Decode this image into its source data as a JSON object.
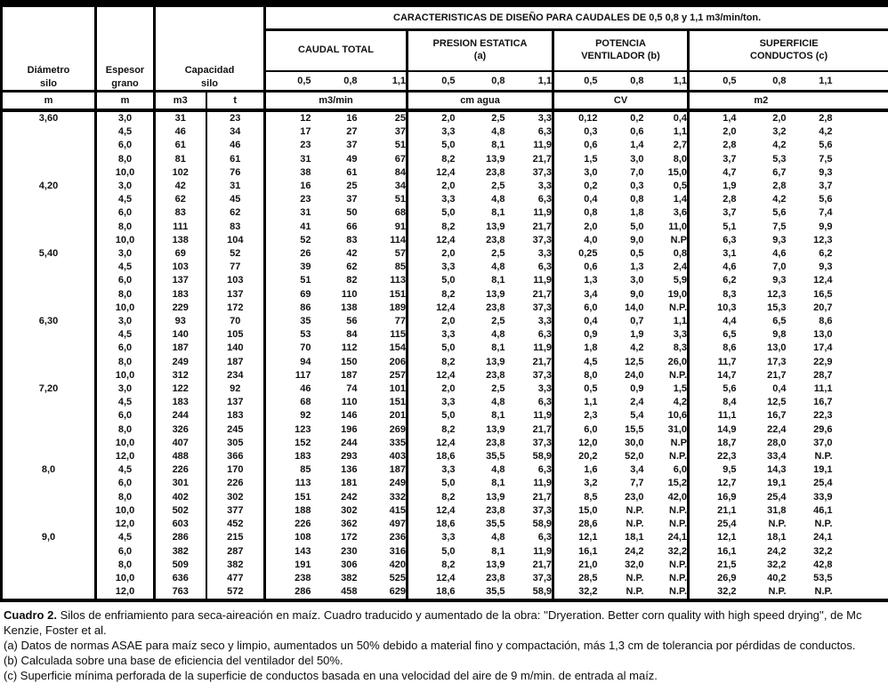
{
  "table": {
    "banner": "CARACTERISTICAS DE DISEÑO PARA CAUDALES DE 0,5 0,8 y 1,1 m3/min/ton.",
    "header": {
      "diametro_l1": "Diámetro",
      "diametro_l2": "silo",
      "diametro_unit": "m",
      "espesor_l1": "Espesor",
      "espesor_l2": "grano",
      "espesor_unit": "m",
      "capacidad_l1": "Capacidad",
      "capacidad_l2": "silo",
      "capacidad_unit_m3": "m3",
      "capacidad_unit_t": "t",
      "caudal_l1": "CAUDAL TOTAL",
      "caudal_unit": "m3/min",
      "presion_l1": "PRESION ESTATICA",
      "presion_l2": "(a)",
      "presion_unit": "cm agua",
      "potencia_l1": "POTENCIA",
      "potencia_l2": "VENTILADOR (b)",
      "potencia_unit": "CV",
      "superficie_l1": "SUPERFICIE",
      "superficie_l2": "CONDUCTOS (c)",
      "superficie_unit": "m2",
      "flow_levels": [
        "0,5",
        "0,8",
        "1,1"
      ]
    },
    "rows": [
      [
        "3,60",
        "3,0",
        "31",
        "23",
        "12",
        "16",
        "25",
        "2,0",
        "2,5",
        "3,3",
        "0,12",
        "0,2",
        "0,4",
        "1,4",
        "2,0",
        "2,8"
      ],
      [
        "",
        "4,5",
        "46",
        "34",
        "17",
        "27",
        "37",
        "3,3",
        "4,8",
        "6,3",
        "0,3",
        "0,6",
        "1,1",
        "2,0",
        "3,2",
        "4,2"
      ],
      [
        "",
        "6,0",
        "61",
        "46",
        "23",
        "37",
        "51",
        "5,0",
        "8,1",
        "11,9",
        "0,6",
        "1,4",
        "2,7",
        "2,8",
        "4,2",
        "5,6"
      ],
      [
        "",
        "8,0",
        "81",
        "61",
        "31",
        "49",
        "67",
        "8,2",
        "13,9",
        "21,7",
        "1,5",
        "3,0",
        "8,0",
        "3,7",
        "5,3",
        "7,5"
      ],
      [
        "",
        "10,0",
        "102",
        "76",
        "38",
        "61",
        "84",
        "12,4",
        "23,8",
        "37,3",
        "3,0",
        "7,0",
        "15,0",
        "4,7",
        "6,7",
        "9,3"
      ],
      [
        "4,20",
        "3,0",
        "42",
        "31",
        "16",
        "25",
        "34",
        "2,0",
        "2,5",
        "3,3",
        "0,2",
        "0,3",
        "0,5",
        "1,9",
        "2,8",
        "3,7"
      ],
      [
        "",
        "4,5",
        "62",
        "45",
        "23",
        "37",
        "51",
        "3,3",
        "4,8",
        "6,3",
        "0,4",
        "0,8",
        "1,4",
        "2,8",
        "4,2",
        "5,6"
      ],
      [
        "",
        "6,0",
        "83",
        "62",
        "31",
        "50",
        "68",
        "5,0",
        "8,1",
        "11,9",
        "0,8",
        "1,8",
        "3,6",
        "3,7",
        "5,6",
        "7,4"
      ],
      [
        "",
        "8,0",
        "111",
        "83",
        "41",
        "66",
        "91",
        "8,2",
        "13,9",
        "21,7",
        "2,0",
        "5,0",
        "11,0",
        "5,1",
        "7,5",
        "9,9"
      ],
      [
        "",
        "10,0",
        "138",
        "104",
        "52",
        "83",
        "114",
        "12,4",
        "23,8",
        "37,3",
        "4,0",
        "9,0",
        "N.P",
        "6,3",
        "9,3",
        "12,3"
      ],
      [
        "5,40",
        "3,0",
        "69",
        "52",
        "26",
        "42",
        "57",
        "2,0",
        "2,5",
        "3,3",
        "0,25",
        "0,5",
        "0,8",
        "3,1",
        "4,6",
        "6,2"
      ],
      [
        "",
        "4,5",
        "103",
        "77",
        "39",
        "62",
        "85",
        "3,3",
        "4,8",
        "6,3",
        "0,6",
        "1,3",
        "2,4",
        "4,6",
        "7,0",
        "9,3"
      ],
      [
        "",
        "6,0",
        "137",
        "103",
        "51",
        "82",
        "113",
        "5,0",
        "8,1",
        "11,9",
        "1,3",
        "3,0",
        "5,9",
        "6,2",
        "9,3",
        "12,4"
      ],
      [
        "",
        "8,0",
        "183",
        "137",
        "69",
        "110",
        "151",
        "8,2",
        "13,9",
        "21,7",
        "3,4",
        "9,0",
        "19,0",
        "8,3",
        "12,3",
        "16,5"
      ],
      [
        "",
        "10,0",
        "229",
        "172",
        "86",
        "138",
        "189",
        "12,4",
        "23,8",
        "37,3",
        "6,0",
        "14,0",
        "N.P.",
        "10,3",
        "15,3",
        "20,7"
      ],
      [
        "6,30",
        "3,0",
        "93",
        "70",
        "35",
        "56",
        "77",
        "2,0",
        "2,5",
        "3,3",
        "0,4",
        "0,7",
        "1,1",
        "4,4",
        "6,5",
        "8,6"
      ],
      [
        "",
        "4,5",
        "140",
        "105",
        "53",
        "84",
        "115",
        "3,3",
        "4,8",
        "6,3",
        "0,9",
        "1,9",
        "3,3",
        "6,5",
        "9,8",
        "13,0"
      ],
      [
        "",
        "6,0",
        "187",
        "140",
        "70",
        "112",
        "154",
        "5,0",
        "8,1",
        "11,9",
        "1,8",
        "4,2",
        "8,3",
        "8,6",
        "13,0",
        "17,4"
      ],
      [
        "",
        "8,0",
        "249",
        "187",
        "94",
        "150",
        "206",
        "8,2",
        "13,9",
        "21,7",
        "4,5",
        "12,5",
        "26,0",
        "11,7",
        "17,3",
        "22,9"
      ],
      [
        "",
        "10,0",
        "312",
        "234",
        "117",
        "187",
        "257",
        "12,4",
        "23,8",
        "37,3",
        "8,0",
        "24,0",
        "N.P.",
        "14,7",
        "21,7",
        "28,7"
      ],
      [
        "7,20",
        "3,0",
        "122",
        "92",
        "46",
        "74",
        "101",
        "2,0",
        "2,5",
        "3,3",
        "0,5",
        "0,9",
        "1,5",
        "5,6",
        "0,4",
        "11,1"
      ],
      [
        "",
        "4,5",
        "183",
        "137",
        "68",
        "110",
        "151",
        "3,3",
        "4,8",
        "6,3",
        "1,1",
        "2,4",
        "4,2",
        "8,4",
        "12,5",
        "16,7"
      ],
      [
        "",
        "6,0",
        "244",
        "183",
        "92",
        "146",
        "201",
        "5,0",
        "8,1",
        "11,9",
        "2,3",
        "5,4",
        "10,6",
        "11,1",
        "16,7",
        "22,3"
      ],
      [
        "",
        "8,0",
        "326",
        "245",
        "123",
        "196",
        "269",
        "8,2",
        "13,9",
        "21,7",
        "6,0",
        "15,5",
        "31,0",
        "14,9",
        "22,4",
        "29,6"
      ],
      [
        "",
        "10,0",
        "407",
        "305",
        "152",
        "244",
        "335",
        "12,4",
        "23,8",
        "37,3",
        "12,0",
        "30,0",
        "N.P",
        "18,7",
        "28,0",
        "37,0"
      ],
      [
        "",
        "12,0",
        "488",
        "366",
        "183",
        "293",
        "403",
        "18,6",
        "35,5",
        "58,9",
        "20,2",
        "52,0",
        "N.P.",
        "22,3",
        "33,4",
        "N.P."
      ],
      [
        "8,0",
        "4,5",
        "226",
        "170",
        "85",
        "136",
        "187",
        "3,3",
        "4,8",
        "6,3",
        "1,6",
        "3,4",
        "6,0",
        "9,5",
        "14,3",
        "19,1"
      ],
      [
        "",
        "6,0",
        "301",
        "226",
        "113",
        "181",
        "249",
        "5,0",
        "8,1",
        "11,9",
        "3,2",
        "7,7",
        "15,2",
        "12,7",
        "19,1",
        "25,4"
      ],
      [
        "",
        "8,0",
        "402",
        "302",
        "151",
        "242",
        "332",
        "8,2",
        "13,9",
        "21,7",
        "8,5",
        "23,0",
        "42,0",
        "16,9",
        "25,4",
        "33,9"
      ],
      [
        "",
        "10,0",
        "502",
        "377",
        "188",
        "302",
        "415",
        "12,4",
        "23,8",
        "37,3",
        "15,0",
        "N.P.",
        "N.P.",
        "21,1",
        "31,8",
        "46,1"
      ],
      [
        "",
        "12,0",
        "603",
        "452",
        "226",
        "362",
        "497",
        "18,6",
        "35,5",
        "58,9",
        "28,6",
        "N.P.",
        "N.P.",
        "25,4",
        "N.P.",
        "N.P."
      ],
      [
        "9,0",
        "4,5",
        "286",
        "215",
        "108",
        "172",
        "236",
        "3,3",
        "4,8",
        "6,3",
        "12,1",
        "18,1",
        "24,1",
        "12,1",
        "18,1",
        "24,1"
      ],
      [
        "",
        "6,0",
        "382",
        "287",
        "143",
        "230",
        "316",
        "5,0",
        "8,1",
        "11,9",
        "16,1",
        "24,2",
        "32,2",
        "16,1",
        "24,2",
        "32,2"
      ],
      [
        "",
        "8,0",
        "509",
        "382",
        "191",
        "306",
        "420",
        "8,2",
        "13,9",
        "21,7",
        "21,0",
        "32,0",
        "N.P.",
        "21,5",
        "32,2",
        "42,8"
      ],
      [
        "",
        "10,0",
        "636",
        "477",
        "238",
        "382",
        "525",
        "12,4",
        "23,8",
        "37,3",
        "28,5",
        "N.P.",
        "N.P.",
        "26,9",
        "40,2",
        "53,5"
      ],
      [
        "",
        "12,0",
        "763",
        "572",
        "286",
        "458",
        "629",
        "18,6",
        "35,5",
        "58,9",
        "32,2",
        "N.P.",
        "N.P.",
        "32,2",
        "N.P.",
        "N.P."
      ]
    ]
  },
  "notes": {
    "caption_bold": "Cuadro 2.",
    "caption_rest": " Silos de enfriamiento para seca-aireación en maíz. Cuadro traducido y aumentado de la obra: ''Dryeration. Better corn quality with high speed drying'', de Mc Kenzie, Foster et al.",
    "note_a": "(a) Datos de normas ASAE para maíz seco y limpio, aumentados un 50% debido a material fino y compactación, más 1,3 cm de tolerancia por pérdidas de conductos.",
    "note_b": "(b) Calculada sobre una base de eficiencia del ventilador del 50%.",
    "note_c": "(c) Superficie mínima perforada de la superficie de conductos basada en una velocidad del aire de 9 m/min. de entrada al maíz."
  }
}
